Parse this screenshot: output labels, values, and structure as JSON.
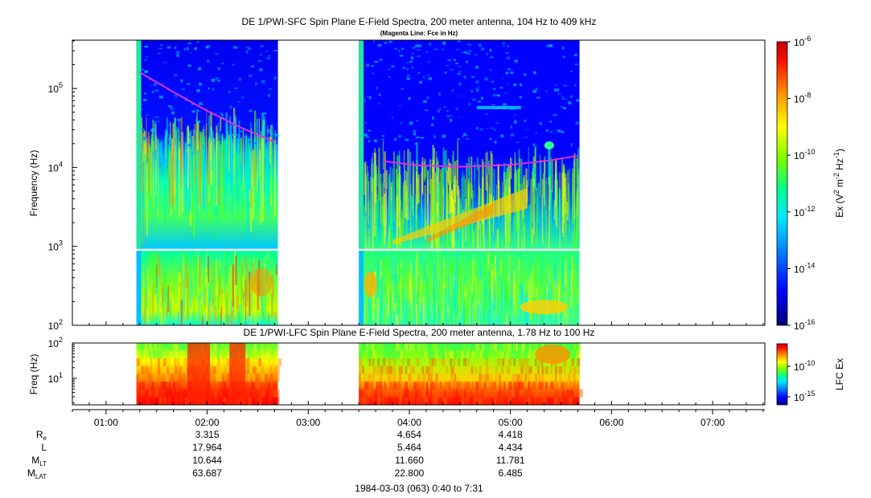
{
  "chart_data": [
    {
      "type": "heatmap",
      "title": "DE 1/PWI-SFC  Spin Plane E-Field Spectra, 200 meter antenna, 104 Hz to 409 kHz",
      "subtitle": "(Magenta Line: Fce in Hz)",
      "ylabel": "Frequency (Hz)",
      "y_scale": "log",
      "ylim": [
        100,
        409000
      ],
      "y_ticks": [
        {
          "value": 100,
          "label": "10^2"
        },
        {
          "value": 1000,
          "label": "10^3"
        },
        {
          "value": 10000,
          "label": "10^4"
        },
        {
          "value": 100000,
          "label": "10^5"
        }
      ],
      "colorbar": {
        "label": "Ex (V^2 m^-2 Hz^-1)",
        "scale": "log",
        "range": [
          1e-16,
          1e-06
        ],
        "ticks": [
          "10^-6",
          "10^-8",
          "10^-10",
          "10^-12",
          "10^-14",
          "10^-16"
        ]
      },
      "data_intervals": [
        {
          "start": "01:18",
          "end": "02:42"
        },
        {
          "start": "03:30",
          "end": "05:41"
        }
      ],
      "fce_line": [
        {
          "time": "01:20",
          "freq_hz": 160000
        },
        {
          "time": "01:40",
          "freq_hz": 90000
        },
        {
          "time": "02:00",
          "freq_hz": 52000
        },
        {
          "time": "02:20",
          "freq_hz": 32000
        },
        {
          "time": "02:40",
          "freq_hz": 21000
        },
        {
          "time": "03:45",
          "freq_hz": 12000
        },
        {
          "time": "04:05",
          "freq_hz": 10600
        },
        {
          "time": "04:30",
          "freq_hz": 10200
        },
        {
          "time": "05:00",
          "freq_hz": 10800
        },
        {
          "time": "05:20",
          "freq_hz": 12000
        },
        {
          "time": "05:40",
          "freq_hz": 14000
        }
      ]
    },
    {
      "type": "heatmap",
      "title": "DE 1/PWI-LFC  Spin Plane E-Field Spectra, 200 meter antenna, 1.78 Hz to 100 Hz",
      "ylabel": "Freq (Hz)",
      "y_scale": "log",
      "ylim": [
        1.78,
        100
      ],
      "y_ticks": [
        {
          "value": 10,
          "label": "10^1"
        },
        {
          "value": 100,
          "label": "10^2"
        }
      ],
      "colorbar": {
        "label": "LFC Ex",
        "scale": "log",
        "ticks": [
          "10^-10",
          "10^-15"
        ]
      },
      "data_intervals": [
        {
          "start": "01:18",
          "end": "02:42"
        },
        {
          "start": "03:30",
          "end": "05:41"
        }
      ]
    }
  ],
  "x_axis": {
    "range": [
      "00:40",
      "07:31"
    ],
    "tick_labels": [
      "01:00",
      "02:00",
      "03:00",
      "04:00",
      "05:00",
      "06:00",
      "07:00"
    ]
  },
  "ephemeris": {
    "rows": [
      {
        "label": "R",
        "sub": "e",
        "values": [
          {
            "time": "02:00",
            "text": "3.315"
          },
          {
            "time": "04:00",
            "text": "4.654"
          },
          {
            "time": "05:00",
            "text": "4.418"
          }
        ]
      },
      {
        "label": "L",
        "sub": "",
        "values": [
          {
            "time": "02:00",
            "text": "17.964"
          },
          {
            "time": "04:00",
            "text": "5.464"
          },
          {
            "time": "05:00",
            "text": "4.434"
          }
        ]
      },
      {
        "label": "M",
        "sub": "LT",
        "values": [
          {
            "time": "02:00",
            "text": "10.644"
          },
          {
            "time": "04:00",
            "text": "11.660"
          },
          {
            "time": "05:00",
            "text": "11.781"
          }
        ]
      },
      {
        "label": "M",
        "sub": "LAT",
        "values": [
          {
            "time": "02:00",
            "text": "63.687"
          },
          {
            "time": "04:00",
            "text": "22.800"
          },
          {
            "time": "05:00",
            "text": "6.485"
          }
        ]
      }
    ]
  },
  "footer": "1984-03-03 (063) 0:40 to 7:31",
  "colors": {
    "fce_line": "#e030e0",
    "background": "#ffffff",
    "colormap": [
      "#00007a",
      "#0000ff",
      "#0080ff",
      "#00e0ff",
      "#00ff90",
      "#60ff00",
      "#ffff00",
      "#ff9000",
      "#ff0000",
      "#b00000"
    ]
  }
}
